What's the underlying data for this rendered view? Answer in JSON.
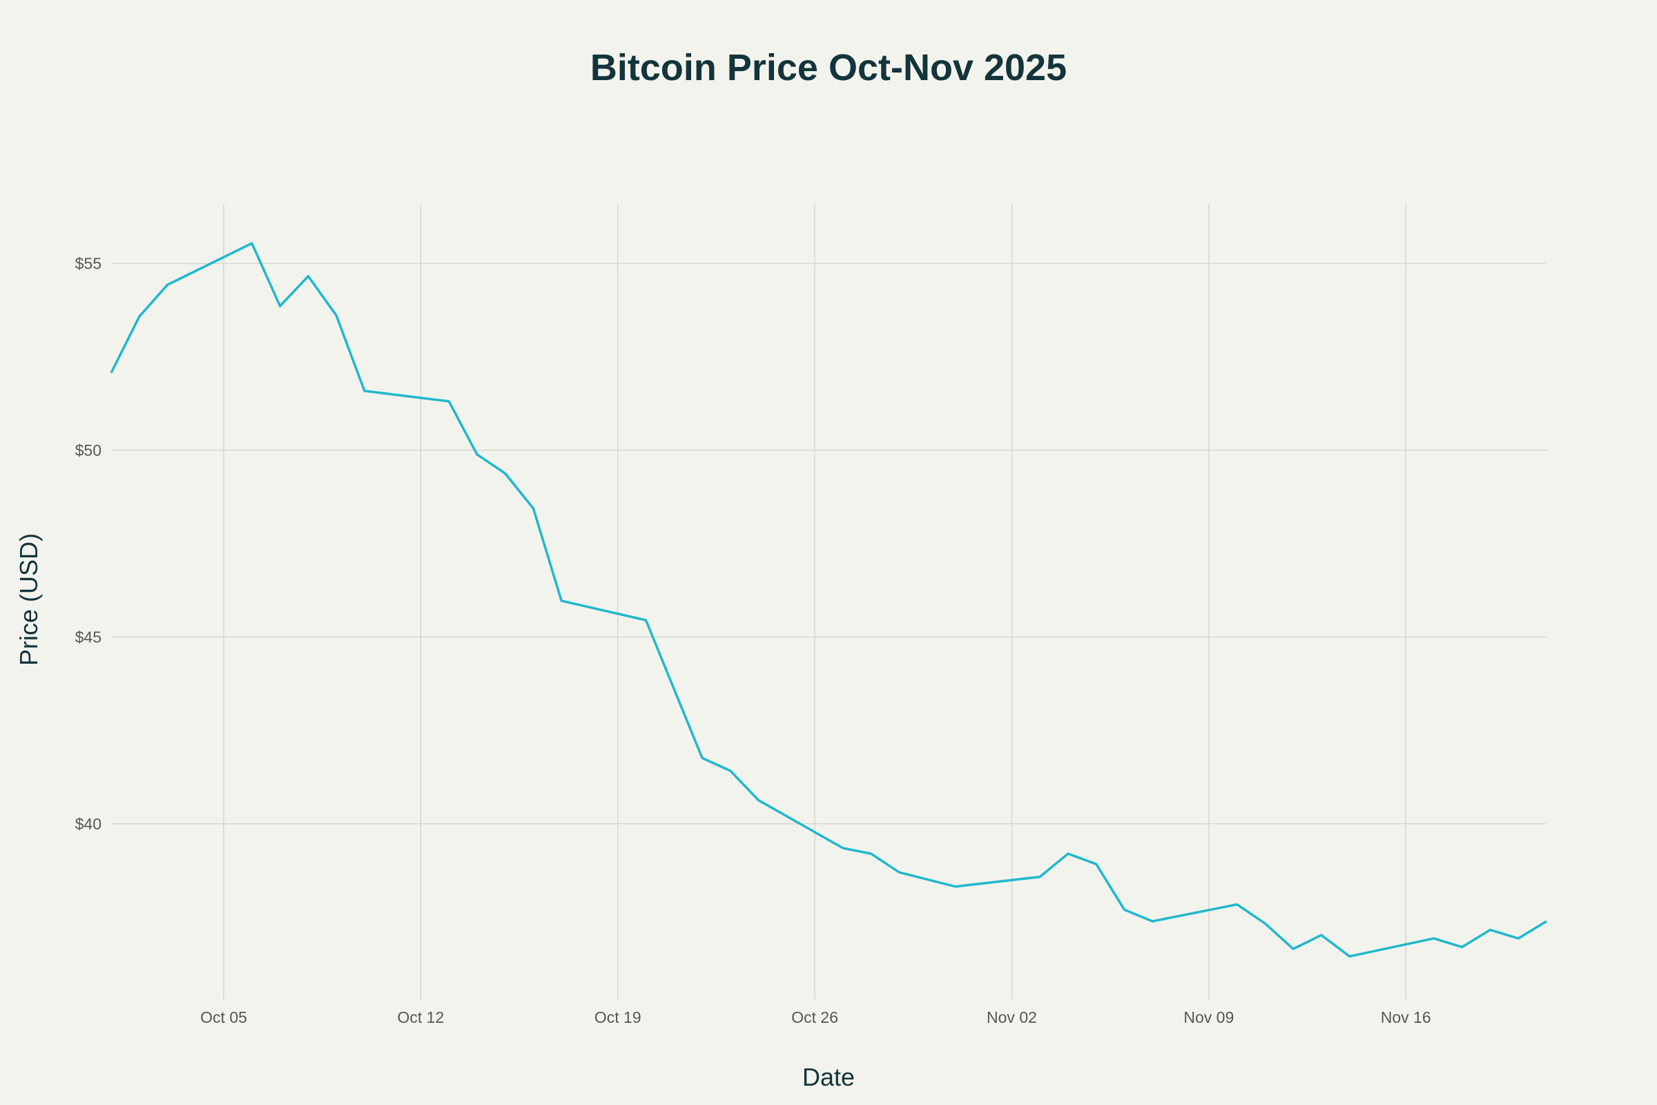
{
  "chart_data": {
    "type": "line",
    "title": "Bitcoin Price Oct-Nov 2025",
    "xlabel": "Date",
    "ylabel": "Price (USD)",
    "xlim": [
      "2025-10-01",
      "2025-11-21"
    ],
    "ylim": [
      35.3,
      56.6
    ],
    "grid": true,
    "line_color": "#1fb8cd",
    "x_ticks": [
      {
        "date": "2025-10-05",
        "label": "Oct 05"
      },
      {
        "date": "2025-10-12",
        "label": "Oct 12"
      },
      {
        "date": "2025-10-19",
        "label": "Oct 19"
      },
      {
        "date": "2025-10-26",
        "label": "Oct 26"
      },
      {
        "date": "2025-11-02",
        "label": "Nov 02"
      },
      {
        "date": "2025-11-09",
        "label": "Nov 09"
      },
      {
        "date": "2025-11-16",
        "label": "Nov 16"
      }
    ],
    "y_ticks": [
      {
        "value": 40,
        "label": "$40"
      },
      {
        "value": 45,
        "label": "$45"
      },
      {
        "value": 50,
        "label": "$50"
      },
      {
        "value": 55,
        "label": "$55"
      }
    ],
    "series": [
      {
        "points": [
          [
            "2025-10-01",
            52.07
          ],
          [
            "2025-10-02",
            53.58
          ],
          [
            "2025-10-03",
            54.43
          ],
          [
            "2025-10-06",
            55.54
          ],
          [
            "2025-10-07",
            53.86
          ],
          [
            "2025-10-08",
            54.66
          ],
          [
            "2025-10-09",
            53.61
          ],
          [
            "2025-10-10",
            51.59
          ],
          [
            "2025-10-13",
            51.31
          ],
          [
            "2025-10-14",
            49.89
          ],
          [
            "2025-10-15",
            49.38
          ],
          [
            "2025-10-16",
            48.44
          ],
          [
            "2025-10-17",
            45.97
          ],
          [
            "2025-10-20",
            45.45
          ],
          [
            "2025-10-22",
            41.76
          ],
          [
            "2025-10-23",
            41.42
          ],
          [
            "2025-10-24",
            40.63
          ],
          [
            "2025-10-27",
            39.35
          ],
          [
            "2025-10-28",
            39.2
          ],
          [
            "2025-10-29",
            38.7
          ],
          [
            "2025-10-31",
            38.32
          ],
          [
            "2025-11-03",
            38.58
          ],
          [
            "2025-11-04",
            39.2
          ],
          [
            "2025-11-05",
            38.92
          ],
          [
            "2025-11-06",
            37.7
          ],
          [
            "2025-11-07",
            37.39
          ],
          [
            "2025-11-10",
            37.84
          ],
          [
            "2025-11-11",
            37.33
          ],
          [
            "2025-11-12",
            36.65
          ],
          [
            "2025-11-13",
            37.02
          ],
          [
            "2025-11-14",
            36.45
          ],
          [
            "2025-11-17",
            36.93
          ],
          [
            "2025-11-18",
            36.7
          ],
          [
            "2025-11-19",
            37.16
          ],
          [
            "2025-11-20",
            36.93
          ],
          [
            "2025-11-21",
            37.39
          ]
        ]
      }
    ]
  }
}
